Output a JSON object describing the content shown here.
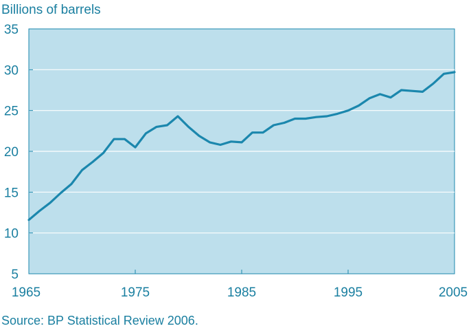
{
  "chart_data": {
    "type": "line",
    "ylabel": "Billions of barrels",
    "source": "Source: BP Statistical Review 2006.",
    "xlim": [
      1965,
      2005
    ],
    "ylim": [
      5,
      35
    ],
    "x_ticks": [
      1965,
      1975,
      1985,
      1995,
      2005
    ],
    "x_tick_labels": [
      "1965",
      "1975",
      "1985",
      "1995",
      "2005"
    ],
    "y_ticks": [
      5,
      10,
      15,
      20,
      25,
      30,
      35
    ],
    "y_tick_labels": [
      "5",
      "10",
      "15",
      "20",
      "25",
      "30",
      "35"
    ],
    "grid": true,
    "colors": {
      "plot_background": "#bddfec",
      "line": "#1b87ad",
      "text": "#1a7fa0",
      "grid": "#ffffff"
    },
    "series": [
      {
        "x": [
          1965,
          1966,
          1967,
          1968,
          1969,
          1970,
          1971,
          1972,
          1973,
          1974,
          1975,
          1976,
          1977,
          1978,
          1979,
          1980,
          1981,
          1982,
          1983,
          1984,
          1985,
          1986,
          1987,
          1988,
          1989,
          1990,
          1991,
          1992,
          1993,
          1994,
          1995,
          1996,
          1997,
          1998,
          1999,
          2000,
          2001,
          2002,
          2003,
          2004,
          2005
        ],
        "values": [
          11.6,
          12.7,
          13.7,
          14.9,
          16.0,
          17.7,
          18.7,
          19.8,
          21.5,
          21.5,
          20.5,
          22.2,
          23.0,
          23.2,
          24.3,
          23.0,
          21.9,
          21.1,
          20.8,
          21.2,
          21.1,
          22.3,
          22.3,
          23.2,
          23.5,
          24.0,
          24.0,
          24.2,
          24.3,
          24.6,
          25.0,
          25.6,
          26.5,
          27.0,
          26.6,
          27.5,
          27.4,
          27.3,
          28.3,
          29.5,
          29.7
        ]
      }
    ]
  }
}
